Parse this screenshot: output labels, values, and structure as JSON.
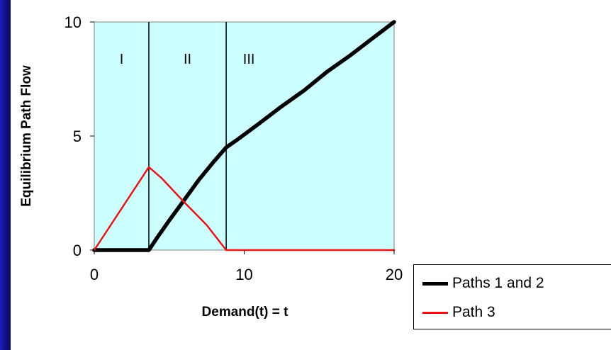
{
  "chart_data": {
    "type": "line",
    "title": "",
    "xlabel": "Demand(t) = t",
    "ylabel": "Equilibrium Path Flow",
    "xlim": [
      0,
      20
    ],
    "ylim": [
      0,
      10
    ],
    "xticks": [
      "0",
      "10",
      "20"
    ],
    "yticks": [
      "0",
      "5",
      "10"
    ],
    "plot_background": "#ccffff",
    "grid": false,
    "legend_position": "right",
    "regions": [
      {
        "label": "I",
        "x_boundary": 3.64
      },
      {
        "label": "II",
        "x_boundary": 8.8
      },
      {
        "label": "III",
        "x_boundary": null
      }
    ],
    "series": [
      {
        "name": "Paths 1 and 2",
        "color": "#000000",
        "x": [
          0,
          3.64,
          4.2,
          5.0,
          6.0,
          7.0,
          8.0,
          8.8,
          9.5,
          11.0,
          12.5,
          14.0,
          15.5,
          17.0,
          18.5,
          20.0
        ],
        "y": [
          0,
          0,
          0.55,
          1.3,
          2.2,
          3.1,
          3.9,
          4.5,
          4.82,
          5.55,
          6.3,
          7.0,
          7.8,
          8.5,
          9.25,
          10.0
        ]
      },
      {
        "name": "Path 3",
        "color": "#ee1111",
        "x": [
          0,
          3.64,
          4.5,
          6.0,
          7.5,
          8.8,
          12.0,
          16.0,
          20.0
        ],
        "y": [
          0,
          3.64,
          3.15,
          2.1,
          1.1,
          0,
          0,
          0,
          0
        ]
      }
    ]
  },
  "legend": {
    "items": [
      {
        "label": "Paths 1 and 2",
        "color": "#000000"
      },
      {
        "label": "Path 3",
        "color": "#ee1111"
      }
    ]
  }
}
